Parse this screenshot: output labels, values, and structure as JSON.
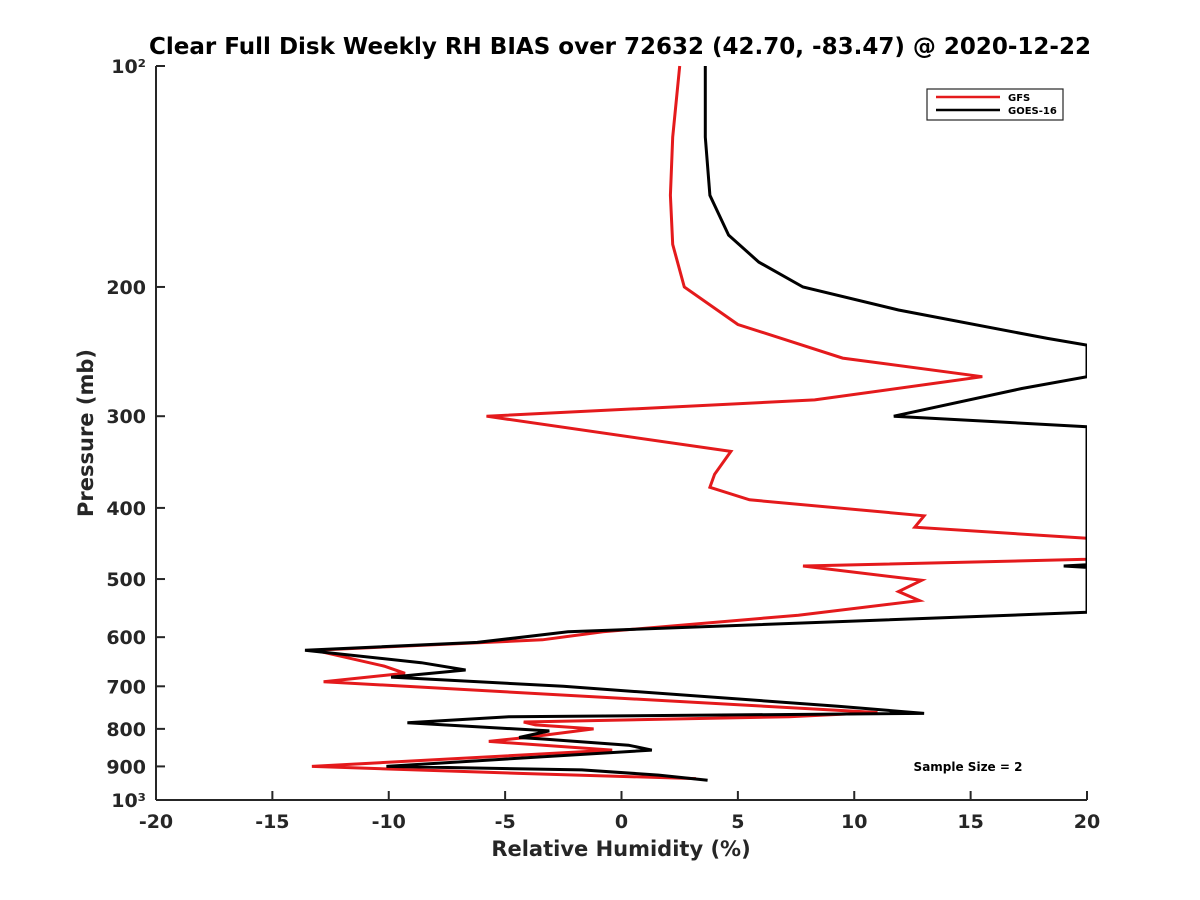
{
  "chart_data": {
    "type": "line",
    "title": "Clear Full Disk Weekly RH BIAS over 72632 (42.70, -83.47) @ 2020-12-22",
    "xlabel": "Relative Humidity (%)",
    "ylabel": "Pressure (mb)",
    "xlim": [
      -20,
      20
    ],
    "ylim": [
      100,
      1000
    ],
    "y_scale": "log",
    "y_reversed": true,
    "grid": false,
    "legend_position": "top-right",
    "x_ticks": [
      -20,
      -15,
      -10,
      -5,
      0,
      5,
      10,
      15,
      20
    ],
    "x_tick_labels": [
      "-20",
      "-15",
      "-10",
      "-5",
      "0",
      "5",
      "10",
      "15",
      "20"
    ],
    "y_ticks": [
      100,
      200,
      300,
      400,
      500,
      600,
      700,
      800,
      900,
      1000
    ],
    "y_tick_labels": [
      "10²",
      "200",
      "300",
      "400",
      "500",
      "600",
      "700",
      "800",
      "900",
      "10³"
    ],
    "annotation": "Sample Size = 2",
    "series": [
      {
        "name": "GFS",
        "color": "#e41a1c",
        "points": [
          [
            2.5,
            100
          ],
          [
            2.2,
            125
          ],
          [
            2.1,
            150
          ],
          [
            2.2,
            175
          ],
          [
            2.7,
            200
          ],
          [
            5.0,
            225
          ],
          [
            9.5,
            250
          ],
          [
            15.5,
            265
          ],
          [
            8.3,
            285
          ],
          [
            -5.8,
            300
          ],
          [
            4.7,
            335
          ],
          [
            4.0,
            360
          ],
          [
            3.8,
            375
          ],
          [
            5.5,
            390
          ],
          [
            13.0,
            410
          ],
          [
            12.6,
            425
          ],
          [
            20.0,
            440
          ],
          [
            20.0,
            470
          ],
          [
            7.8,
            480
          ],
          [
            12.9,
            502
          ],
          [
            11.9,
            520
          ],
          [
            12.8,
            535
          ],
          [
            7.6,
            560
          ],
          [
            -0.8,
            590
          ],
          [
            -3.4,
            605
          ],
          [
            -13.2,
            625
          ],
          [
            -10.2,
            657
          ],
          [
            -9.3,
            672
          ],
          [
            -12.8,
            690
          ],
          [
            11.0,
            760
          ],
          [
            7.2,
            770
          ],
          [
            -4.2,
            783
          ],
          [
            -3.7,
            790
          ],
          [
            -1.2,
            800
          ],
          [
            -4.1,
            822
          ],
          [
            -5.7,
            832
          ],
          [
            -0.4,
            855
          ],
          [
            -13.3,
            900
          ],
          [
            -4.4,
            920
          ],
          [
            3.2,
            935
          ]
        ]
      },
      {
        "name": "GOES-16",
        "color": "#000000",
        "points": [
          [
            3.6,
            100
          ],
          [
            3.6,
            125
          ],
          [
            3.8,
            150
          ],
          [
            4.6,
            170
          ],
          [
            5.9,
            185
          ],
          [
            7.8,
            200
          ],
          [
            11.9,
            215
          ],
          [
            18.3,
            235
          ],
          [
            20.0,
            240
          ],
          [
            20.0,
            265
          ],
          [
            17.2,
            275
          ],
          [
            11.7,
            300
          ],
          [
            20.0,
            310
          ],
          [
            20.0,
            478
          ],
          [
            19.0,
            480
          ],
          [
            20.0,
            482
          ],
          [
            20.0,
            555
          ],
          [
            16.7,
            560
          ],
          [
            -2.3,
            590
          ],
          [
            -6.2,
            610
          ],
          [
            -13.6,
            625
          ],
          [
            -8.6,
            650
          ],
          [
            -6.7,
            665
          ],
          [
            -9.9,
            680
          ],
          [
            -2.5,
            700
          ],
          [
            9.3,
            745
          ],
          [
            13.0,
            762
          ],
          [
            -4.8,
            770
          ],
          [
            -9.2,
            785
          ],
          [
            -3.1,
            805
          ],
          [
            -4.4,
            822
          ],
          [
            -3.3,
            826
          ],
          [
            0.3,
            842
          ],
          [
            1.3,
            855
          ],
          [
            -10.1,
            900
          ],
          [
            -1.7,
            910
          ],
          [
            1.6,
            925
          ],
          [
            3.7,
            940
          ]
        ]
      }
    ]
  }
}
